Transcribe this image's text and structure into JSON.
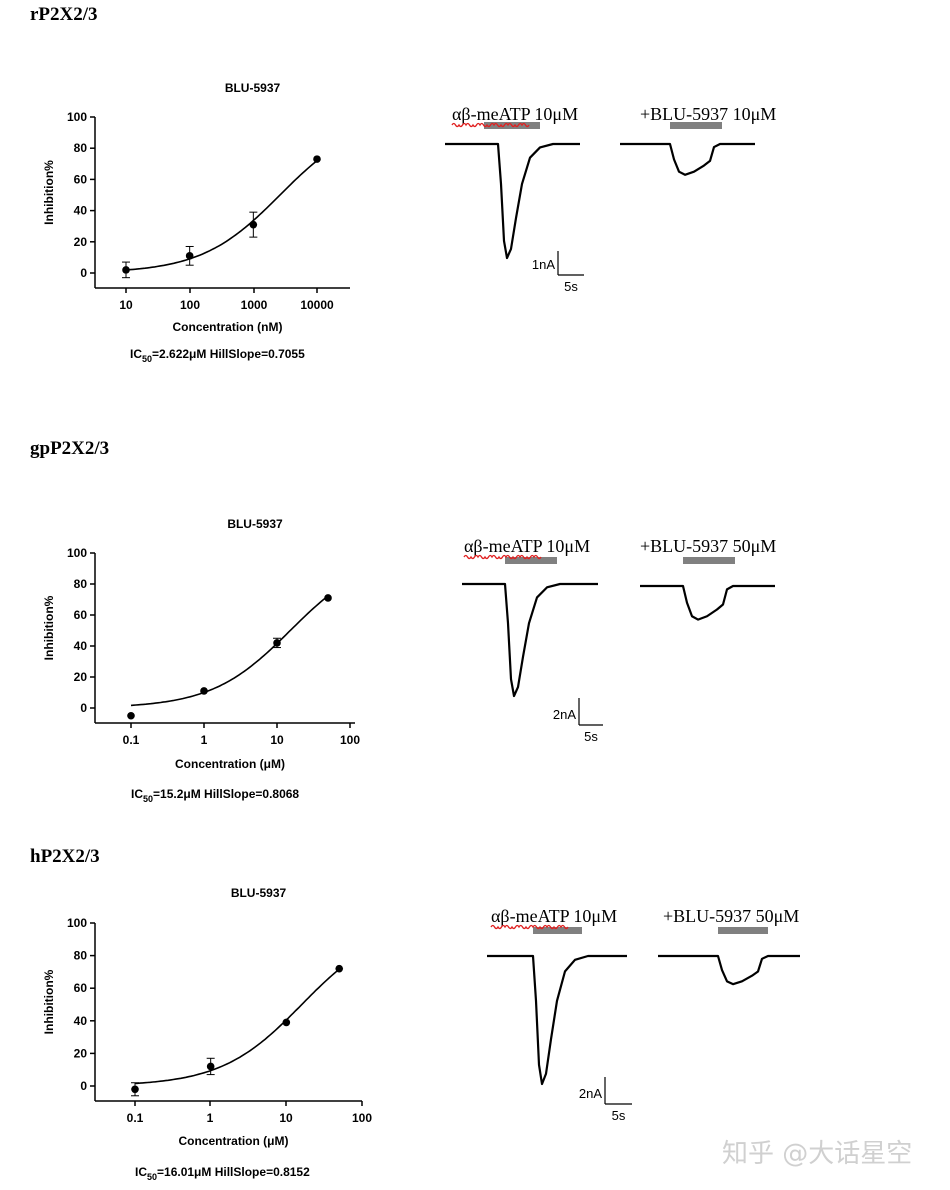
{
  "sections": [
    {
      "title": "rP2X2/3",
      "trace_labels": [
        "αβ-meATP 10μM",
        "+BLU-5937 10μM"
      ],
      "scale_bar": {
        "current": "1nA",
        "time": "5s"
      }
    },
    {
      "title": "gpP2X2/3",
      "trace_labels": [
        "αβ-meATP 10μM",
        "+BLU-5937 50μM"
      ],
      "scale_bar": {
        "current": "2nA",
        "time": "5s"
      }
    },
    {
      "title": "hP2X2/3",
      "trace_labels": [
        "αβ-meATP 10μM",
        "+BLU-5937 50μM"
      ],
      "scale_bar": {
        "current": "2nA",
        "time": "5s"
      }
    }
  ],
  "chart_data": [
    {
      "type": "scatter",
      "title": "BLU-5937",
      "xlabel": "Concentration (nM)",
      "ylabel": "Inhibition%",
      "x_scale": "log",
      "x_ticks": [
        "10",
        "100",
        "1000",
        "10000"
      ],
      "y_ticks": [
        "0",
        "20",
        "40",
        "60",
        "80",
        "100"
      ],
      "ylim": [
        -8,
        100
      ],
      "x": [
        10,
        100,
        1000,
        10000
      ],
      "y": [
        2,
        11,
        31,
        73
      ],
      "error": [
        5,
        6,
        8,
        0
      ],
      "fit": {
        "ic50": 2622,
        "hillslope": 0.7055,
        "bottom": 0,
        "top": 100
      },
      "caption": {
        "prefix": "IC",
        "sub": "50",
        "suffix": "=2.622μM  HillSlope=0.7055"
      },
      "traces": {
        "control_peak": 1.0,
        "blocked_peak": 0.27
      }
    },
    {
      "type": "scatter",
      "title": "BLU-5937",
      "xlabel": "Concentration (μM)",
      "ylabel": "Inhibition%",
      "x_scale": "log",
      "x_ticks": [
        "0.1",
        "1",
        "10",
        "100"
      ],
      "y_ticks": [
        "0",
        "20",
        "40",
        "60",
        "80",
        "100"
      ],
      "ylim": [
        -8,
        100
      ],
      "x": [
        0.1,
        1,
        10,
        50
      ],
      "y": [
        -5,
        11,
        42,
        71
      ],
      "error": [
        0,
        0,
        3,
        0
      ],
      "fit": {
        "ic50": 15.2,
        "hillslope": 0.8068,
        "bottom": 0,
        "top": 100
      },
      "caption": {
        "prefix": "IC",
        "sub": "50",
        "suffix": "=15.2μM HillSlope=0.8068"
      },
      "traces": {
        "control_peak": 1.0,
        "blocked_peak": 0.3
      }
    },
    {
      "type": "scatter",
      "title": "BLU-5937",
      "xlabel": "Concentration (μM)",
      "ylabel": "Inhibition%",
      "x_scale": "log",
      "x_ticks": [
        "0.1",
        "1",
        "10",
        "100"
      ],
      "y_ticks": [
        "0",
        "20",
        "40",
        "60",
        "80",
        "100"
      ],
      "ylim": [
        -8,
        100
      ],
      "x": [
        0.1,
        1,
        10,
        50
      ],
      "y": [
        -2,
        12,
        39,
        72
      ],
      "error": [
        4,
        5,
        0,
        0
      ],
      "fit": {
        "ic50": 16.01,
        "hillslope": 0.8152,
        "bottom": 0,
        "top": 100
      },
      "caption": {
        "prefix": "IC",
        "sub": "50",
        "suffix": "=16.01μM  HillSlope=0.8152"
      },
      "traces": {
        "control_peak": 1.0,
        "blocked_peak": 0.22
      }
    }
  ],
  "watermark": "知乎 @大话星空"
}
